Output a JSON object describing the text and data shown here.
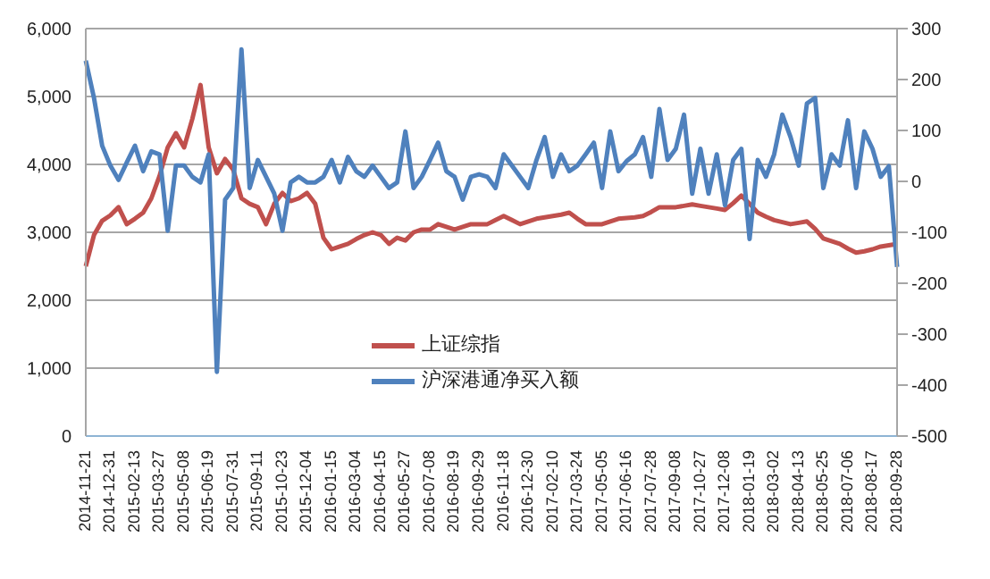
{
  "chart_data": {
    "type": "line",
    "categories": [
      "2014-11-21",
      null,
      null,
      "2014-12-31",
      null,
      null,
      "2015-02-13",
      null,
      null,
      "2015-03-27",
      null,
      null,
      "2015-05-08",
      null,
      null,
      "2015-06-19",
      null,
      null,
      "2015-07-31",
      null,
      null,
      "2015-09-11",
      null,
      null,
      "2015-10-23",
      null,
      null,
      "2015-12-04",
      null,
      null,
      "2016-01-15",
      null,
      null,
      "2016-03-04",
      null,
      null,
      "2016-04-15",
      null,
      null,
      "2016-05-27",
      null,
      null,
      "2016-07-08",
      null,
      null,
      "2016-08-19",
      null,
      null,
      "2016-09-29",
      null,
      null,
      "2016-11-18",
      null,
      null,
      "2016-12-30",
      null,
      null,
      "2017-02-10",
      null,
      null,
      "2017-03-24",
      null,
      null,
      "2017-05-05",
      null,
      null,
      "2017-06-16",
      null,
      null,
      "2017-07-28",
      null,
      null,
      "2017-09-08",
      null,
      null,
      "2017-10-27",
      null,
      null,
      "2017-12-08",
      null,
      null,
      "2018-01-19",
      null,
      null,
      "2018-03-02",
      null,
      null,
      "2018-04-13",
      null,
      null,
      "2018-05-25",
      null,
      null,
      "2018-07-06",
      null,
      null,
      "2018-08-17",
      null,
      null,
      "2018-09-28"
    ],
    "series": [
      {
        "name": "上证综指",
        "color": "#c0504d",
        "values": [
          2500,
          2960,
          3170,
          3250,
          3370,
          3120,
          3200,
          3290,
          3500,
          3830,
          4250,
          4460,
          4250,
          4670,
          5170,
          4250,
          3870,
          4080,
          3920,
          3500,
          3420,
          3370,
          3120,
          3420,
          3580,
          3460,
          3500,
          3580,
          3420,
          2920,
          2750,
          2790,
          2830,
          2900,
          2960,
          3000,
          2960,
          2830,
          2920,
          2880,
          3000,
          3040,
          3040,
          3120,
          3080,
          3040,
          3080,
          3120,
          3120,
          3120,
          3180,
          3240,
          3180,
          3120,
          3160,
          3200,
          3220,
          3240,
          3260,
          3290,
          3200,
          3120,
          3120,
          3120,
          3160,
          3200,
          3210,
          3220,
          3240,
          3300,
          3370,
          3370,
          3370,
          3390,
          3410,
          3390,
          3370,
          3350,
          3330,
          3430,
          3540,
          3420,
          3290,
          3230,
          3180,
          3150,
          3120,
          3140,
          3160,
          3050,
          2910,
          2870,
          2830,
          2760,
          2700,
          2720,
          2750,
          2790,
          2810,
          2830
        ]
      },
      {
        "name": "沪深港通净买入额",
        "color": "#4f81bd",
        "axis": "y2",
        "values": [
          237,
          164,
          70,
          31,
          3,
          37,
          70,
          20,
          59,
          53,
          -97,
          31,
          31,
          9,
          -2,
          53,
          -374,
          -36,
          -13,
          259,
          -13,
          42,
          9,
          -24,
          -97,
          -2,
          9,
          -2,
          -2,
          9,
          42,
          -2,
          48,
          20,
          9,
          31,
          9,
          -13,
          -2,
          98,
          -13,
          9,
          42,
          76,
          20,
          9,
          -36,
          9,
          14,
          9,
          -13,
          53,
          31,
          9,
          -13,
          42,
          87,
          9,
          53,
          20,
          31,
          53,
          76,
          -13,
          98,
          20,
          40,
          53,
          87,
          9,
          142,
          42,
          64,
          131,
          -24,
          64,
          -24,
          53,
          -47,
          42,
          64,
          -113,
          42,
          9,
          53,
          131,
          87,
          31,
          153,
          164,
          -13,
          53,
          31,
          120,
          -13,
          98,
          64,
          9,
          30,
          -168
        ]
      }
    ],
    "ylim": [
      0,
      6000
    ],
    "yticks": [
      {
        "value": 0,
        "label": "0"
      },
      {
        "value": 1000,
        "label": "1,000"
      },
      {
        "value": 2000,
        "label": "2,000"
      },
      {
        "value": 3000,
        "label": "3,000"
      },
      {
        "value": 4000,
        "label": "4,000"
      },
      {
        "value": 5000,
        "label": "5,000"
      },
      {
        "value": 6000,
        "label": "6,000"
      }
    ],
    "y2lim": [
      -500,
      300
    ],
    "y2ticks": [
      -500,
      -400,
      -300,
      -200,
      -100,
      0,
      100,
      200,
      300
    ],
    "grid": "y",
    "legend": "bottom",
    "marker": "none",
    "line_style": "solid"
  }
}
